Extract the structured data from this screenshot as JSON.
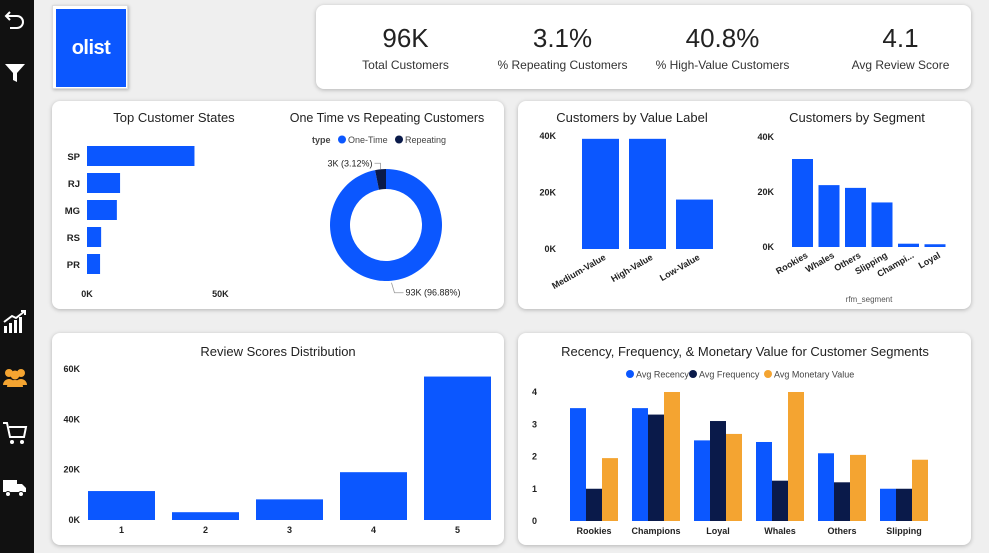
{
  "brand": {
    "logo_text": "olist",
    "accent": "#0b57ff"
  },
  "colors": {
    "blue": "#0b57ff",
    "navy": "#0a1a4a",
    "orange": "#f4a431"
  },
  "sidebar": {
    "icons": [
      "undo-icon",
      "filter-icon",
      "trend-chart-icon",
      "customers-icon",
      "cart-icon",
      "delivery-truck-icon"
    ]
  },
  "kpis": [
    {
      "value": "96K",
      "label": "Total Customers"
    },
    {
      "value": "3.1%",
      "label": "% Repeating Customers"
    },
    {
      "value": "40.8%",
      "label": "% High-Value Customers"
    },
    {
      "value": "4.1",
      "label": "Avg Review Score"
    }
  ],
  "chart_data": [
    {
      "id": "states",
      "type": "bar",
      "orientation": "horizontal",
      "title": "Top Customer States",
      "categories": [
        "SP",
        "RJ",
        "MG",
        "RS",
        "PR"
      ],
      "values": [
        40300,
        12400,
        11200,
        5300,
        4900
      ],
      "xlim": [
        0,
        60000
      ],
      "x_ticks": [
        {
          "value": 0,
          "label": "0K"
        },
        {
          "value": 50000,
          "label": "50K"
        }
      ]
    },
    {
      "id": "one-time-repeating",
      "type": "pie",
      "donut": true,
      "title": "One Time vs Repeating Customers",
      "legend_title": "type",
      "legend_position": "top",
      "series": [
        {
          "name": "One-Time",
          "value": 93000,
          "percent": 96.88,
          "label": "93K (96.88%)"
        },
        {
          "name": "Repeating",
          "value": 3000,
          "percent": 3.12,
          "label": "3K (3.12%)"
        }
      ]
    },
    {
      "id": "value-label",
      "type": "bar",
      "title": "Customers by Value Label",
      "categories": [
        "Medium-Value",
        "High-Value",
        "Low-Value"
      ],
      "values": [
        39000,
        39000,
        17500
      ],
      "ylim": [
        0,
        40000
      ],
      "y_ticks": [
        {
          "value": 0,
          "label": "0K"
        },
        {
          "value": 20000,
          "label": "20K"
        },
        {
          "value": 40000,
          "label": "40K"
        }
      ]
    },
    {
      "id": "segment",
      "type": "bar",
      "title": "Customers by Segment",
      "xlabel": "rfm_segment",
      "categories": [
        "Rookies",
        "Whales",
        "Others",
        "Slipping",
        "Champi...",
        "Loyal"
      ],
      "values": [
        32000,
        22500,
        21500,
        16200,
        1200,
        1000
      ],
      "ylim": [
        0,
        40000
      ],
      "y_ticks": [
        {
          "value": 0,
          "label": "0K"
        },
        {
          "value": 20000,
          "label": "20K"
        },
        {
          "value": 40000,
          "label": "40K"
        }
      ]
    },
    {
      "id": "reviews",
      "type": "bar",
      "title": "Review Scores Distribution",
      "categories": [
        "1",
        "2",
        "3",
        "4",
        "5"
      ],
      "values": [
        11500,
        3100,
        8200,
        19000,
        57000
      ],
      "ylim": [
        0,
        60000
      ],
      "y_ticks": [
        {
          "value": 0,
          "label": "0K"
        },
        {
          "value": 20000,
          "label": "20K"
        },
        {
          "value": 40000,
          "label": "40K"
        },
        {
          "value": 60000,
          "label": "60K"
        }
      ]
    },
    {
      "id": "rfm",
      "type": "bar",
      "title": "Recency, Frequency, & Monetary Value for Customer Segments",
      "legend_position": "top",
      "categories": [
        "Rookies",
        "Champions",
        "Loyal",
        "Whales",
        "Others",
        "Slipping"
      ],
      "series": [
        {
          "name": "Avg Recency",
          "values": [
            3.5,
            3.5,
            2.5,
            2.45,
            2.1,
            1.0
          ]
        },
        {
          "name": "Avg Frequency",
          "values": [
            1.0,
            3.3,
            3.1,
            1.25,
            1.2,
            1.0
          ]
        },
        {
          "name": "Avg Monetary Value",
          "values": [
            1.95,
            4.0,
            2.7,
            4.0,
            2.05,
            1.9
          ]
        }
      ],
      "ylim": [
        0,
        4
      ],
      "y_ticks": [
        {
          "value": 0,
          "label": "0"
        },
        {
          "value": 1,
          "label": "1"
        },
        {
          "value": 2,
          "label": "2"
        },
        {
          "value": 3,
          "label": "3"
        },
        {
          "value": 4,
          "label": "4"
        }
      ]
    }
  ]
}
